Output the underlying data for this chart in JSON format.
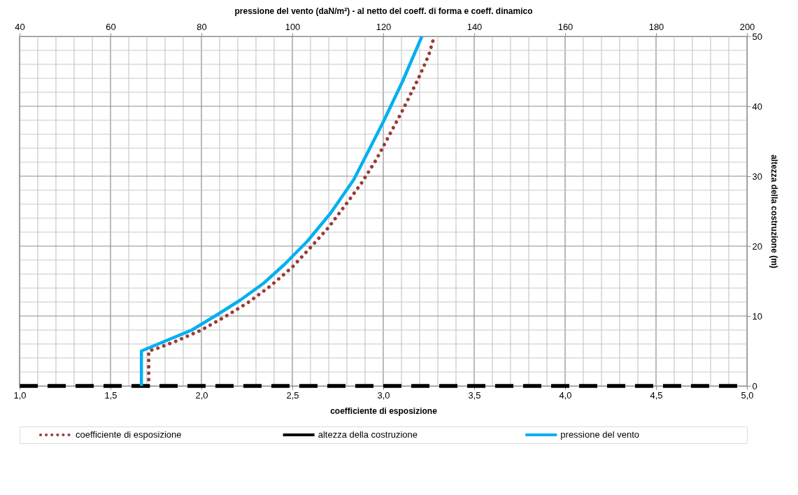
{
  "chart_data": {
    "type": "line",
    "xlabel": "coefficiente di esposizione",
    "x2label": "pressione del vento (daN/m²) - al netto del coeff. di forma e coeff. dinamico",
    "ylabel": "altezza della costruzione (m)",
    "xlim": [
      1,
      5
    ],
    "xticks": [
      {
        "value": 1.0,
        "label": "1,0"
      },
      {
        "value": 1.1,
        "label": null
      },
      {
        "value": 1.2,
        "label": null
      },
      {
        "value": 1.3,
        "label": null
      },
      {
        "value": 1.4,
        "label": null
      },
      {
        "value": 1.5,
        "label": "1,5"
      },
      {
        "value": 1.6,
        "label": null
      },
      {
        "value": 1.7,
        "label": null
      },
      {
        "value": 1.8,
        "label": null
      },
      {
        "value": 1.9,
        "label": null
      },
      {
        "value": 2.0,
        "label": "2,0"
      },
      {
        "value": 2.1,
        "label": null
      },
      {
        "value": 2.2,
        "label": null
      },
      {
        "value": 2.3,
        "label": null
      },
      {
        "value": 2.4,
        "label": null
      },
      {
        "value": 2.5,
        "label": "2,5"
      },
      {
        "value": 2.6,
        "label": null
      },
      {
        "value": 2.7,
        "label": null
      },
      {
        "value": 2.8,
        "label": null
      },
      {
        "value": 2.9,
        "label": null
      },
      {
        "value": 3.0,
        "label": "3,0"
      },
      {
        "value": 3.1,
        "label": null
      },
      {
        "value": 3.2,
        "label": null
      },
      {
        "value": 3.3,
        "label": null
      },
      {
        "value": 3.4,
        "label": null
      },
      {
        "value": 3.5,
        "label": "3,5"
      },
      {
        "value": 3.6,
        "label": null
      },
      {
        "value": 3.7,
        "label": null
      },
      {
        "value": 3.8,
        "label": null
      },
      {
        "value": 3.9,
        "label": null
      },
      {
        "value": 4.0,
        "label": "4,0"
      },
      {
        "value": 4.1,
        "label": null
      },
      {
        "value": 4.2,
        "label": null
      },
      {
        "value": 4.3,
        "label": null
      },
      {
        "value": 4.4,
        "label": null
      },
      {
        "value": 4.5,
        "label": "4,5"
      },
      {
        "value": 4.6,
        "label": null
      },
      {
        "value": 4.7,
        "label": null
      },
      {
        "value": 4.8,
        "label": null
      },
      {
        "value": 4.9,
        "label": null
      },
      {
        "value": 5.0,
        "label": "5,0"
      }
    ],
    "x2lim": [
      40,
      200
    ],
    "x2ticks": [
      40,
      60,
      80,
      100,
      120,
      140,
      160,
      180,
      200
    ],
    "ylim": [
      0,
      50
    ],
    "yticks": [
      0,
      {
        "value": 2,
        "label": null
      },
      {
        "value": 4,
        "label": null
      },
      {
        "value": 6,
        "label": null
      },
      {
        "value": 8,
        "label": null
      },
      10,
      {
        "value": 12,
        "label": null
      },
      {
        "value": 14,
        "label": null
      },
      {
        "value": 16,
        "label": null
      },
      {
        "value": 18,
        "label": null
      },
      20,
      {
        "value": 22,
        "label": null
      },
      {
        "value": 24,
        "label": null
      },
      {
        "value": 26,
        "label": null
      },
      {
        "value": 28,
        "label": null
      },
      30,
      {
        "value": 32,
        "label": null
      },
      {
        "value": 34,
        "label": null
      },
      {
        "value": 36,
        "label": null
      },
      {
        "value": 38,
        "label": null
      },
      40,
      {
        "value": 42,
        "label": null
      },
      {
        "value": 44,
        "label": null
      },
      {
        "value": 46,
        "label": null
      },
      {
        "value": 48,
        "label": null
      },
      50
    ],
    "tick_labels": "xy",
    "grid": true,
    "legend": "bottom",
    "series": [
      {
        "name": "coefficiente di esposizione",
        "color": "#9b3a35",
        "line_style": "dotted",
        "x": [
          1.71,
          1.71,
          1.76,
          1.86,
          2.0,
          2.13,
          2.26,
          2.38,
          2.5,
          2.6,
          2.7,
          2.79,
          2.88,
          2.96,
          3.1,
          3.19,
          3.25,
          3.28
        ],
        "values": [
          0,
          5,
          5.4,
          6.4,
          8.0,
          9.9,
          12.0,
          14.3,
          17.0,
          19.8,
          22.7,
          25.8,
          29.0,
          32.3,
          39.1,
          43.8,
          47.3,
          50
        ]
      },
      {
        "name": "altezza della costruzione",
        "color": "#000000",
        "line_style": "dashed",
        "x": [
          1,
          5
        ],
        "values": [
          0,
          0
        ]
      },
      {
        "name": "pressione del vento",
        "color": "#00b0f0",
        "line_style": "solid",
        "axis": "x2",
        "x": [
          66.8,
          66.8,
          77.9,
          83.5,
          88.6,
          93.7,
          98.3,
          103.3,
          108.4,
          113.5,
          117.6,
          120.1,
          124.2,
          128.5
        ],
        "values": [
          0,
          5,
          8.0,
          10.2,
          12.3,
          14.7,
          17.4,
          20.7,
          24.7,
          29.5,
          34.7,
          37.9,
          43.5,
          50
        ]
      }
    ]
  }
}
